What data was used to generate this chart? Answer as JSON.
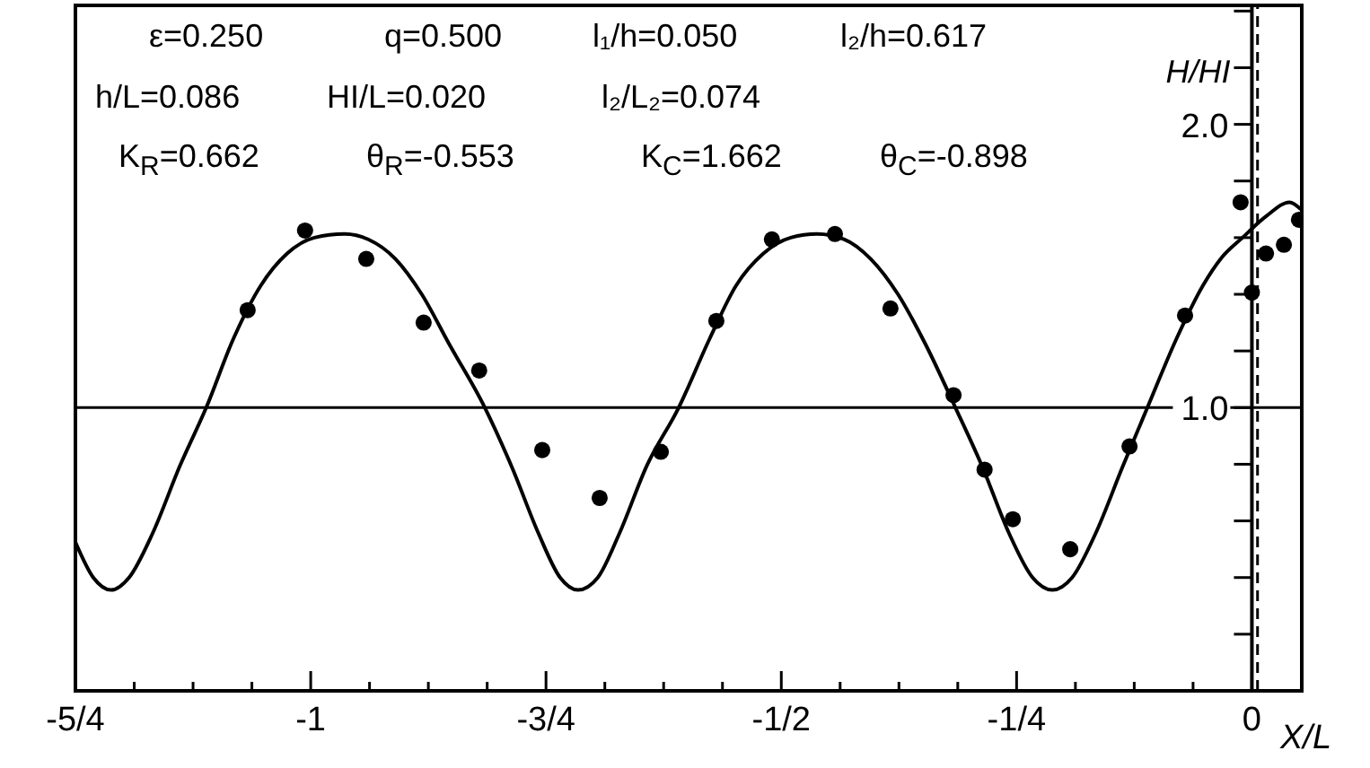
{
  "chart_data": {
    "type": "line",
    "xlabel": "X/L",
    "ylabel": "H/HI",
    "xlim": [
      -1.25,
      0.053
    ],
    "xticks": [
      {
        "value": -1.25,
        "label": "-5/4"
      },
      {
        "value": -1.1875,
        "label": null
      },
      {
        "value": -1.125,
        "label": null
      },
      {
        "value": -1.0625,
        "label": null
      },
      {
        "value": -1,
        "label": "-1"
      },
      {
        "value": -0.9375,
        "label": null
      },
      {
        "value": -0.875,
        "label": null
      },
      {
        "value": -0.8125,
        "label": null
      },
      {
        "value": -0.75,
        "label": "-3/4"
      },
      {
        "value": -0.6875,
        "label": null
      },
      {
        "value": -0.625,
        "label": null
      },
      {
        "value": -0.5625,
        "label": null
      },
      {
        "value": -0.5,
        "label": "-1/2"
      },
      {
        "value": -0.4375,
        "label": null
      },
      {
        "value": -0.375,
        "label": null
      },
      {
        "value": -0.3125,
        "label": null
      },
      {
        "value": -0.25,
        "label": "-1/4"
      },
      {
        "value": -0.1875,
        "label": null
      },
      {
        "value": -0.125,
        "label": null
      },
      {
        "value": -0.0625,
        "label": null
      },
      {
        "value": 0,
        "label": "0"
      }
    ],
    "ylim": [
      0,
      2.42
    ],
    "yticks": [
      {
        "value": 0.2,
        "label": null
      },
      {
        "value": 0.4,
        "label": null
      },
      {
        "value": 0.6,
        "label": null
      },
      {
        "value": 0.8,
        "label": null
      },
      {
        "value": 1,
        "label": "1.0"
      },
      {
        "value": 1.2,
        "label": null
      },
      {
        "value": 1.4,
        "label": null
      },
      {
        "value": 1.6,
        "label": null
      },
      {
        "value": 1.8,
        "label": null
      },
      {
        "value": 2,
        "label": "2.0"
      },
      {
        "value": 2.2,
        "label": null
      },
      {
        "value": 2.4,
        "label": null
      }
    ],
    "ref_lines": [
      {
        "axis": "y",
        "value": 1,
        "color": "#000000",
        "line_style": "solid"
      },
      {
        "axis": "x",
        "value": 0.006,
        "color": "#000000",
        "line_style": "dashed"
      }
    ],
    "annotations": [
      "ε=0.250",
      "q=0.500",
      "l₁/h=0.050",
      "l₂/h=0.617",
      "h/L=0.086",
      "HI/L=0.020",
      "l₂/L₂=0.074",
      "K$_{R}$=0.662",
      "θ$_{R}$=-0.553",
      "K$_{C}$=1.662",
      "θ$_{C}$=-0.898"
    ],
    "series": [
      {
        "color": "#000000",
        "marker": "none",
        "x": [
          -1.25,
          -1.231,
          -1.212,
          -1.193,
          -1.168,
          -1.139,
          -1.111,
          -1.082,
          -1.053,
          -1.025,
          -0.996,
          -0.964,
          -0.939,
          -0.91,
          -0.882,
          -0.853,
          -0.815,
          -0.786,
          -0.758,
          -0.735,
          -0.716,
          -0.695,
          -0.672,
          -0.643,
          -0.609,
          -0.576,
          -0.548,
          -0.519,
          -0.49,
          -0.462,
          -0.433,
          -0.405,
          -0.376,
          -0.347,
          -0.315,
          -0.286,
          -0.258,
          -0.233,
          -0.212,
          -0.191,
          -0.166,
          -0.137,
          -0.111,
          -0.08,
          -0.052,
          -0.032,
          -0.01,
          0.015,
          0.04,
          0.052
        ],
        "values": [
          0.525,
          0.4,
          0.356,
          0.4,
          0.556,
          0.794,
          1.0,
          1.244,
          1.431,
          1.544,
          1.6,
          1.613,
          1.594,
          1.525,
          1.4,
          1.225,
          1.0,
          0.788,
          0.556,
          0.4,
          0.356,
          0.4,
          0.556,
          0.794,
          1.0,
          1.244,
          1.431,
          1.544,
          1.6,
          1.613,
          1.594,
          1.525,
          1.4,
          1.225,
          1.0,
          0.788,
          0.556,
          0.4,
          0.356,
          0.4,
          0.556,
          0.794,
          1.0,
          1.244,
          1.431,
          1.53,
          1.6,
          1.675,
          1.725,
          1.7
        ]
      },
      {
        "type": "scatter",
        "color": "#000000",
        "marker": "circle",
        "x": [
          -1.067,
          -1.006,
          -0.941,
          -0.88,
          -0.821,
          -0.754,
          -0.693,
          -0.628,
          -0.569,
          -0.51,
          -0.443,
          -0.384,
          -0.317,
          -0.284,
          -0.254,
          -0.193,
          -0.13,
          -0.071,
          -0.012,
          0.0,
          0.015,
          0.034,
          0.05
        ],
        "values": [
          1.344,
          1.625,
          1.525,
          1.3,
          1.131,
          0.85,
          0.681,
          0.844,
          1.306,
          1.594,
          1.613,
          1.35,
          1.044,
          0.781,
          0.606,
          0.5,
          0.863,
          1.325,
          1.725,
          1.406,
          1.544,
          1.575,
          1.663
        ]
      }
    ]
  }
}
